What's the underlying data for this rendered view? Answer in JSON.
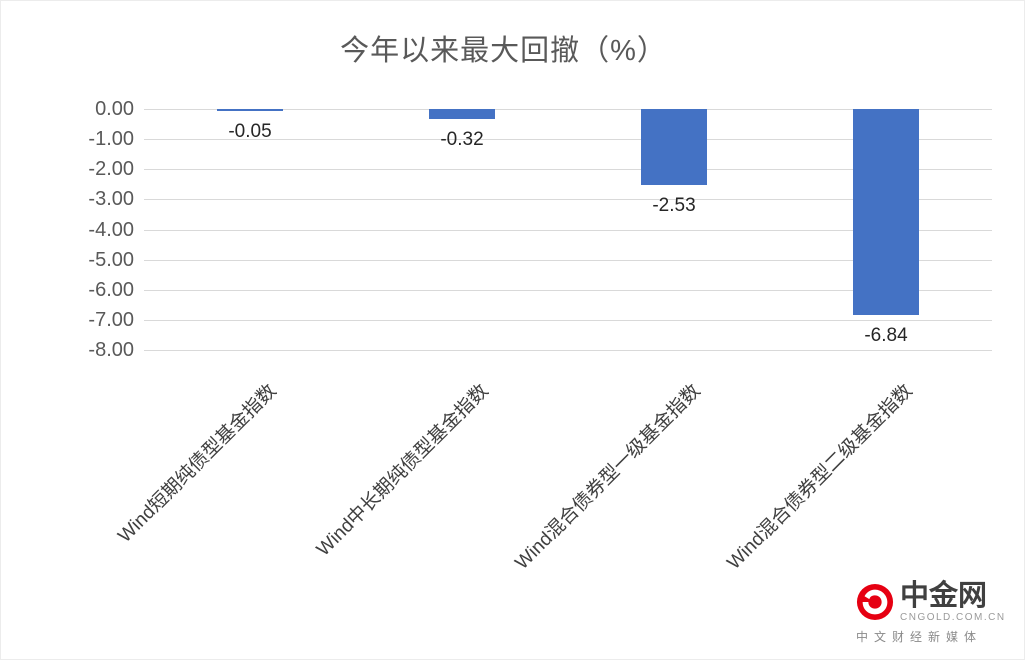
{
  "chart_data": {
    "type": "bar",
    "title": "今年以来最大回撤（%）",
    "categories": [
      "Wind短期纯债型基金指数",
      "Wind中长期纯债型基金指数",
      "Wind混合债券型一级基金指数",
      "Wind混合债券型二级基金指数"
    ],
    "values": [
      -0.05,
      -0.32,
      -2.53,
      -6.84
    ],
    "data_labels": [
      "-0.05",
      "-0.32",
      "-2.53",
      "-6.84"
    ],
    "xlabel": "",
    "ylabel": "",
    "ylim": [
      -8,
      0
    ],
    "ytick_values": [
      0,
      -1,
      -2,
      -3,
      -4,
      -5,
      -6,
      -7,
      -8
    ],
    "ytick_labels": [
      "0.00",
      "-1.00",
      "-2.00",
      "-3.00",
      "-4.00",
      "-5.00",
      "-6.00",
      "-7.00",
      "-8.00"
    ],
    "grid": true,
    "legend": "none",
    "bar_color": "#4472C4"
  },
  "watermark": {
    "brand": "中金网",
    "domain": "CNGOLD.COM.CN",
    "tagline": "中文财经新媒体",
    "logo_color": "#E60012"
  }
}
